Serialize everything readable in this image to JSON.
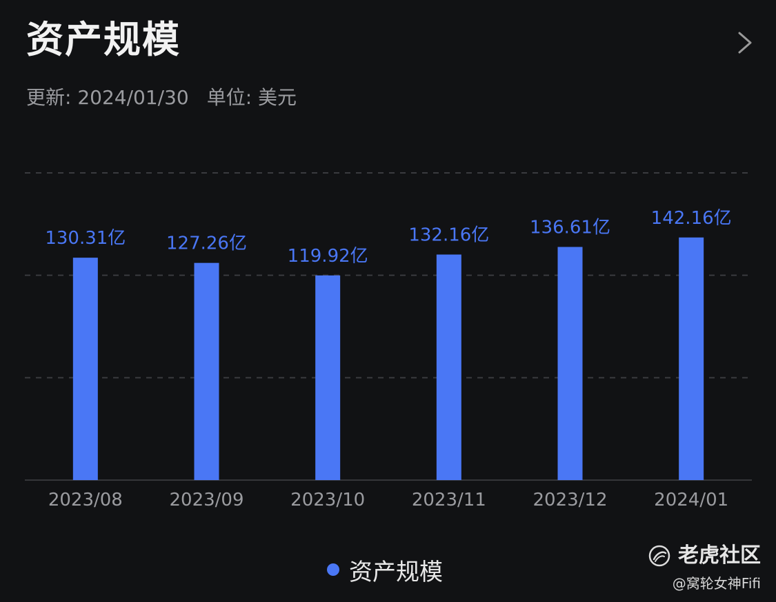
{
  "header": {
    "title": "资产规模",
    "update_text": "更新: 2024/01/30",
    "unit_text": "单位: 美元",
    "chevron_icon": "chevron-right-icon"
  },
  "legend": {
    "label": "资产规模",
    "color": "#4a77f5"
  },
  "watermark": {
    "brand": "老虎社区",
    "user": "@窝轮女神Fifi",
    "logo_icon": "tiger-community-logo"
  },
  "colors": {
    "background": "#111214",
    "bar": "#4a77f5",
    "value_label": "#4a77f5",
    "grid": "#3a3b3f",
    "tick_label": "#9b9ca0"
  },
  "chart_data": {
    "type": "bar",
    "categories": [
      "2023/08",
      "2023/09",
      "2023/10",
      "2023/11",
      "2023/12",
      "2024/01"
    ],
    "values": [
      130.31,
      127.26,
      119.92,
      132.16,
      136.61,
      142.16
    ],
    "data_labels": [
      "130.31亿",
      "127.26亿",
      "119.92亿",
      "132.16亿",
      "136.61亿",
      "142.16亿"
    ],
    "title": "",
    "xlabel": "",
    "ylabel": "",
    "ylim": [
      0,
      180
    ],
    "grid": true,
    "legend_position": "bottom-center"
  }
}
